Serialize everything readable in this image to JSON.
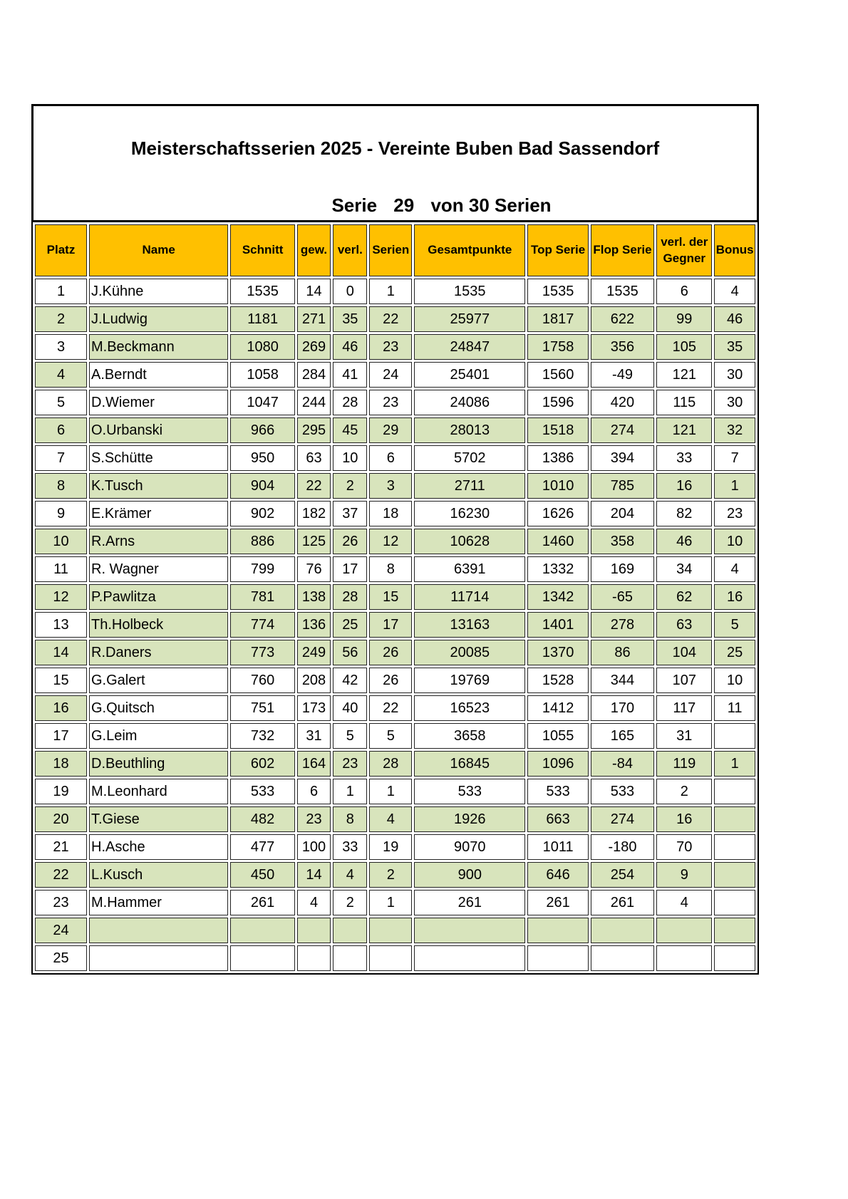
{
  "title": "Meisterschaftsserien 2025 - Vereinte Buben Bad Sassendorf",
  "subtitle": {
    "prefix": "Serie",
    "number": "29",
    "suffix": "von 30 Serien"
  },
  "colors": {
    "header": "#ffc000",
    "green_row": "#d8e4bc"
  },
  "columns": [
    "Platz",
    "Name",
    "Schnitt",
    "gew.",
    "verl.",
    "Serien",
    "Gesamtpunkte",
    "Top Serie",
    "Flop Serie",
    "verl. der Gegner",
    "Bonus"
  ],
  "rows": [
    {
      "platz": "1",
      "name": "J.Kühne",
      "schnitt": "1535",
      "gew": "14",
      "verl": "0",
      "serien": "1",
      "gesamt": "1535",
      "top": "1535",
      "flop": "1535",
      "gegner": "6",
      "bonus": "4",
      "platz_green": false,
      "green": false
    },
    {
      "platz": "2",
      "name": "J.Ludwig",
      "schnitt": "1181",
      "gew": "271",
      "verl": "35",
      "serien": "22",
      "gesamt": "25977",
      "top": "1817",
      "flop": "622",
      "gegner": "99",
      "bonus": "46",
      "platz_green": true,
      "green": true
    },
    {
      "platz": "3",
      "name": "M.Beckmann",
      "schnitt": "1080",
      "gew": "269",
      "verl": "46",
      "serien": "23",
      "gesamt": "24847",
      "top": "1758",
      "flop": "356",
      "gegner": "105",
      "bonus": "35",
      "platz_green": false,
      "green": true
    },
    {
      "platz": "4",
      "name": "A.Berndt",
      "schnitt": "1058",
      "gew": "284",
      "verl": "41",
      "serien": "24",
      "gesamt": "25401",
      "top": "1560",
      "flop": "-49",
      "gegner": "121",
      "bonus": "30",
      "platz_green": true,
      "green": false
    },
    {
      "platz": "5",
      "name": "D.Wiemer",
      "schnitt": "1047",
      "gew": "244",
      "verl": "28",
      "serien": "23",
      "gesamt": "24086",
      "top": "1596",
      "flop": "420",
      "gegner": "115",
      "bonus": "30",
      "platz_green": false,
      "green": false
    },
    {
      "platz": "6",
      "name": "O.Urbanski",
      "schnitt": "966",
      "gew": "295",
      "verl": "45",
      "serien": "29",
      "gesamt": "28013",
      "top": "1518",
      "flop": "274",
      "gegner": "121",
      "bonus": "32",
      "platz_green": true,
      "green": true
    },
    {
      "platz": "7",
      "name": "S.Schütte",
      "schnitt": "950",
      "gew": "63",
      "verl": "10",
      "serien": "6",
      "gesamt": "5702",
      "top": "1386",
      "flop": "394",
      "gegner": "33",
      "bonus": "7",
      "platz_green": false,
      "green": false
    },
    {
      "platz": "8",
      "name": "K.Tusch",
      "schnitt": "904",
      "gew": "22",
      "verl": "2",
      "serien": "3",
      "gesamt": "2711",
      "top": "1010",
      "flop": "785",
      "gegner": "16",
      "bonus": "1",
      "platz_green": true,
      "green": true
    },
    {
      "platz": "9",
      "name": "E.Krämer",
      "schnitt": "902",
      "gew": "182",
      "verl": "37",
      "serien": "18",
      "gesamt": "16230",
      "top": "1626",
      "flop": "204",
      "gegner": "82",
      "bonus": "23",
      "platz_green": false,
      "green": false
    },
    {
      "platz": "10",
      "name": "R.Arns",
      "schnitt": "886",
      "gew": "125",
      "verl": "26",
      "serien": "12",
      "gesamt": "10628",
      "top": "1460",
      "flop": "358",
      "gegner": "46",
      "bonus": "10",
      "platz_green": true,
      "green": true
    },
    {
      "platz": "11",
      "name": "R. Wagner",
      "schnitt": "799",
      "gew": "76",
      "verl": "17",
      "serien": "8",
      "gesamt": "6391",
      "top": "1332",
      "flop": "169",
      "gegner": "34",
      "bonus": "4",
      "platz_green": false,
      "green": false
    },
    {
      "platz": "12",
      "name": "P.Pawlitza",
      "schnitt": "781",
      "gew": "138",
      "verl": "28",
      "serien": "15",
      "gesamt": "11714",
      "top": "1342",
      "flop": "-65",
      "gegner": "62",
      "bonus": "16",
      "platz_green": true,
      "green": true
    },
    {
      "platz": "13",
      "name": "Th.Holbeck",
      "schnitt": "774",
      "gew": "136",
      "verl": "25",
      "serien": "17",
      "gesamt": "13163",
      "top": "1401",
      "flop": "278",
      "gegner": "63",
      "bonus": "5",
      "platz_green": false,
      "green": true
    },
    {
      "platz": "14",
      "name": "R.Daners",
      "schnitt": "773",
      "gew": "249",
      "verl": "56",
      "serien": "26",
      "gesamt": "20085",
      "top": "1370",
      "flop": "86",
      "gegner": "104",
      "bonus": "25",
      "platz_green": true,
      "green": true
    },
    {
      "platz": "15",
      "name": "G.Galert",
      "schnitt": "760",
      "gew": "208",
      "verl": "42",
      "serien": "26",
      "gesamt": "19769",
      "top": "1528",
      "flop": "344",
      "gegner": "107",
      "bonus": "10",
      "platz_green": false,
      "green": false
    },
    {
      "platz": "16",
      "name": "G.Quitsch",
      "schnitt": "751",
      "gew": "173",
      "verl": "40",
      "serien": "22",
      "gesamt": "16523",
      "top": "1412",
      "flop": "170",
      "gegner": "117",
      "bonus": "11",
      "platz_green": true,
      "green": false
    },
    {
      "platz": "17",
      "name": "G.Leim",
      "schnitt": "732",
      "gew": "31",
      "verl": "5",
      "serien": "5",
      "gesamt": "3658",
      "top": "1055",
      "flop": "165",
      "gegner": "31",
      "bonus": "",
      "platz_green": false,
      "green": false
    },
    {
      "platz": "18",
      "name": "D.Beuthling",
      "schnitt": "602",
      "gew": "164",
      "verl": "23",
      "serien": "28",
      "gesamt": "16845",
      "top": "1096",
      "flop": "-84",
      "gegner": "119",
      "bonus": "1",
      "platz_green": true,
      "green": true
    },
    {
      "platz": "19",
      "name": "M.Leonhard",
      "schnitt": "533",
      "gew": "6",
      "verl": "1",
      "serien": "1",
      "gesamt": "533",
      "top": "533",
      "flop": "533",
      "gegner": "2",
      "bonus": "",
      "platz_green": false,
      "green": false
    },
    {
      "platz": "20",
      "name": "T.Giese",
      "schnitt": "482",
      "gew": "23",
      "verl": "8",
      "serien": "4",
      "gesamt": "1926",
      "top": "663",
      "flop": "274",
      "gegner": "16",
      "bonus": "",
      "platz_green": true,
      "green": true
    },
    {
      "platz": "21",
      "name": "H.Asche",
      "schnitt": "477",
      "gew": "100",
      "verl": "33",
      "serien": "19",
      "gesamt": "9070",
      "top": "1011",
      "flop": "-180",
      "gegner": "70",
      "bonus": "",
      "platz_green": false,
      "green": false
    },
    {
      "platz": "22",
      "name": "L.Kusch",
      "schnitt": "450",
      "gew": "14",
      "verl": "4",
      "serien": "2",
      "gesamt": "900",
      "top": "646",
      "flop": "254",
      "gegner": "9",
      "bonus": "",
      "platz_green": true,
      "green": true
    },
    {
      "platz": "23",
      "name": "M.Hammer",
      "schnitt": "261",
      "gew": "4",
      "verl": "2",
      "serien": "1",
      "gesamt": "261",
      "top": "261",
      "flop": "261",
      "gegner": "4",
      "bonus": "",
      "platz_green": false,
      "green": false
    },
    {
      "platz": "24",
      "name": "",
      "schnitt": "",
      "gew": "",
      "verl": "",
      "serien": "",
      "gesamt": "",
      "top": "",
      "flop": "",
      "gegner": "",
      "bonus": "",
      "platz_green": true,
      "green": true
    },
    {
      "platz": "25",
      "name": "",
      "schnitt": "",
      "gew": "",
      "verl": "",
      "serien": "",
      "gesamt": "",
      "top": "",
      "flop": "",
      "gegner": "",
      "bonus": "",
      "platz_green": false,
      "green": false
    }
  ]
}
